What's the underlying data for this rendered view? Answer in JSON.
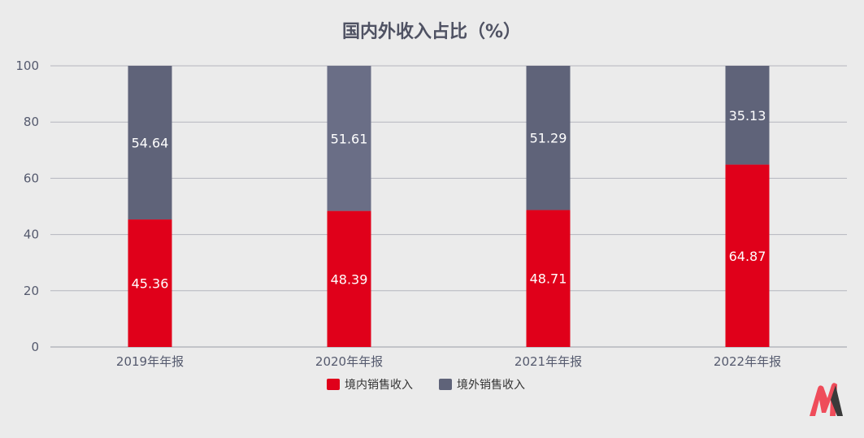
{
  "colors": {
    "background": "#ebebeb",
    "domestic": "#e0001a",
    "overseas_top": "#5f6379",
    "overseas_alt": "#6a6e86",
    "grid": "#b4b6be",
    "text": "#555a6e"
  },
  "logo": {
    "icon": "brand-m-logo"
  },
  "chart_data": {
    "type": "bar",
    "stacked": true,
    "title": "国内外收入占比（%）",
    "categories": [
      "2019年年报",
      "2020年年报",
      "2021年年报",
      "2022年年报"
    ],
    "series": [
      {
        "name": "境内销售收入",
        "color": "#e0001a",
        "values": [
          45.36,
          48.39,
          48.71,
          64.87
        ]
      },
      {
        "name": "境外销售收入",
        "color": "#5f6379",
        "values": [
          54.64,
          51.61,
          51.29,
          35.13
        ]
      }
    ],
    "value_labels": [
      [
        "45.36",
        "48.39",
        "48.71",
        "64.87"
      ],
      [
        "54.64",
        "51.61",
        "51.29",
        "35.13"
      ]
    ],
    "yticks": [
      "0",
      "20",
      "40",
      "60",
      "80",
      "100"
    ],
    "ylim": [
      0,
      100
    ],
    "grid": true,
    "legend": "bottom-center"
  }
}
